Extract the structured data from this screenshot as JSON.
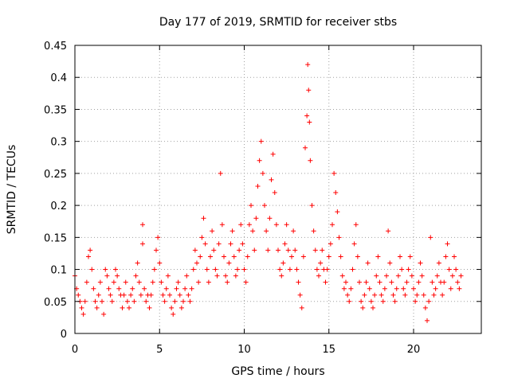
{
  "chart_data": {
    "type": "scatter",
    "title": "Day 177 of 2019, SRMTID for receiver stbs",
    "xlabel": "GPS time / hours",
    "ylabel": "SRMTID / TECUs",
    "xlim": [
      0,
      24
    ],
    "ylim": [
      0,
      0.45
    ],
    "xticks": [
      0,
      5,
      10,
      15,
      20
    ],
    "xtick_labels": [
      "0",
      "5",
      "10",
      "15",
      "20"
    ],
    "yticks": [
      0,
      0.05,
      0.1,
      0.15,
      0.2,
      0.25,
      0.3,
      0.35,
      0.4,
      0.45
    ],
    "ytick_labels": [
      "0",
      "0.05",
      "0.1",
      "0.15",
      "0.2",
      "0.25",
      "0.3",
      "0.35",
      "0.4",
      "0.45"
    ],
    "grid": true,
    "marker": "plus",
    "color": "#ff0000",
    "series": [
      {
        "name": "SRMTID",
        "points": [
          [
            0.0,
            0.09
          ],
          [
            0.1,
            0.07
          ],
          [
            0.2,
            0.06
          ],
          [
            0.3,
            0.05
          ],
          [
            0.4,
            0.04
          ],
          [
            0.5,
            0.03
          ],
          [
            0.6,
            0.05
          ],
          [
            0.7,
            0.08
          ],
          [
            0.8,
            0.12
          ],
          [
            0.9,
            0.13
          ],
          [
            1.0,
            0.1
          ],
          [
            1.1,
            0.07
          ],
          [
            1.2,
            0.05
          ],
          [
            1.3,
            0.04
          ],
          [
            1.4,
            0.06
          ],
          [
            1.5,
            0.08
          ],
          [
            1.6,
            0.05
          ],
          [
            1.7,
            0.03
          ],
          [
            1.8,
            0.1
          ],
          [
            1.9,
            0.09
          ],
          [
            2.0,
            0.07
          ],
          [
            2.1,
            0.06
          ],
          [
            2.2,
            0.05
          ],
          [
            2.3,
            0.08
          ],
          [
            2.4,
            0.1
          ],
          [
            2.5,
            0.09
          ],
          [
            2.6,
            0.07
          ],
          [
            2.7,
            0.06
          ],
          [
            2.8,
            0.04
          ],
          [
            2.9,
            0.06
          ],
          [
            3.0,
            0.08
          ],
          [
            3.1,
            0.05
          ],
          [
            3.2,
            0.04
          ],
          [
            3.3,
            0.06
          ],
          [
            3.4,
            0.07
          ],
          [
            3.5,
            0.05
          ],
          [
            3.6,
            0.09
          ],
          [
            3.7,
            0.11
          ],
          [
            3.8,
            0.08
          ],
          [
            3.9,
            0.06
          ],
          [
            4.0,
            0.17
          ],
          [
            4.0,
            0.14
          ],
          [
            4.1,
            0.07
          ],
          [
            4.2,
            0.05
          ],
          [
            4.3,
            0.06
          ],
          [
            4.4,
            0.04
          ],
          [
            4.5,
            0.06
          ],
          [
            4.6,
            0.08
          ],
          [
            4.7,
            0.1
          ],
          [
            4.8,
            0.13
          ],
          [
            4.9,
            0.15
          ],
          [
            5.0,
            0.11
          ],
          [
            5.1,
            0.08
          ],
          [
            5.2,
            0.06
          ],
          [
            5.3,
            0.05
          ],
          [
            5.4,
            0.07
          ],
          [
            5.5,
            0.09
          ],
          [
            5.6,
            0.06
          ],
          [
            5.7,
            0.04
          ],
          [
            5.8,
            0.03
          ],
          [
            5.9,
            0.05
          ],
          [
            6.0,
            0.07
          ],
          [
            6.1,
            0.08
          ],
          [
            6.2,
            0.06
          ],
          [
            6.3,
            0.04
          ],
          [
            6.4,
            0.05
          ],
          [
            6.5,
            0.07
          ],
          [
            6.6,
            0.09
          ],
          [
            6.7,
            0.06
          ],
          [
            6.8,
            0.05
          ],
          [
            6.9,
            0.07
          ],
          [
            7.0,
            0.1
          ],
          [
            7.1,
            0.13
          ],
          [
            7.2,
            0.11
          ],
          [
            7.3,
            0.08
          ],
          [
            7.4,
            0.12
          ],
          [
            7.5,
            0.15
          ],
          [
            7.6,
            0.18
          ],
          [
            7.7,
            0.14
          ],
          [
            7.8,
            0.1
          ],
          [
            7.9,
            0.08
          ],
          [
            8.0,
            0.12
          ],
          [
            8.1,
            0.16
          ],
          [
            8.2,
            0.13
          ],
          [
            8.3,
            0.1
          ],
          [
            8.4,
            0.09
          ],
          [
            8.5,
            0.14
          ],
          [
            8.6,
            0.25
          ],
          [
            8.7,
            0.17
          ],
          [
            8.8,
            0.12
          ],
          [
            8.9,
            0.09
          ],
          [
            9.0,
            0.08
          ],
          [
            9.1,
            0.11
          ],
          [
            9.2,
            0.14
          ],
          [
            9.3,
            0.16
          ],
          [
            9.4,
            0.12
          ],
          [
            9.5,
            0.09
          ],
          [
            9.6,
            0.1
          ],
          [
            9.7,
            0.13
          ],
          [
            9.8,
            0.17
          ],
          [
            9.9,
            0.14
          ],
          [
            10.0,
            0.1
          ],
          [
            10.1,
            0.08
          ],
          [
            10.2,
            0.12
          ],
          [
            10.3,
            0.17
          ],
          [
            10.4,
            0.2
          ],
          [
            10.5,
            0.16
          ],
          [
            10.6,
            0.13
          ],
          [
            10.7,
            0.18
          ],
          [
            10.8,
            0.23
          ],
          [
            10.9,
            0.27
          ],
          [
            11.0,
            0.3
          ],
          [
            11.1,
            0.25
          ],
          [
            11.2,
            0.2
          ],
          [
            11.3,
            0.16
          ],
          [
            11.4,
            0.13
          ],
          [
            11.5,
            0.18
          ],
          [
            11.6,
            0.24
          ],
          [
            11.7,
            0.28
          ],
          [
            11.8,
            0.22
          ],
          [
            11.9,
            0.17
          ],
          [
            12.0,
            0.13
          ],
          [
            12.1,
            0.1
          ],
          [
            12.2,
            0.09
          ],
          [
            12.3,
            0.11
          ],
          [
            12.4,
            0.14
          ],
          [
            12.5,
            0.17
          ],
          [
            12.6,
            0.13
          ],
          [
            12.7,
            0.1
          ],
          [
            12.8,
            0.12
          ],
          [
            12.9,
            0.16
          ],
          [
            13.0,
            0.13
          ],
          [
            13.1,
            0.1
          ],
          [
            13.2,
            0.08
          ],
          [
            13.3,
            0.06
          ],
          [
            13.4,
            0.04
          ],
          [
            13.5,
            0.12
          ],
          [
            13.6,
            0.29
          ],
          [
            13.7,
            0.34
          ],
          [
            13.75,
            0.42
          ],
          [
            13.8,
            0.38
          ],
          [
            13.85,
            0.33
          ],
          [
            13.9,
            0.27
          ],
          [
            14.0,
            0.2
          ],
          [
            14.1,
            0.16
          ],
          [
            14.2,
            0.13
          ],
          [
            14.3,
            0.1
          ],
          [
            14.4,
            0.09
          ],
          [
            14.5,
            0.11
          ],
          [
            14.6,
            0.13
          ],
          [
            14.7,
            0.1
          ],
          [
            14.8,
            0.08
          ],
          [
            14.9,
            0.1
          ],
          [
            15.0,
            0.12
          ],
          [
            15.1,
            0.14
          ],
          [
            15.2,
            0.17
          ],
          [
            15.3,
            0.25
          ],
          [
            15.4,
            0.22
          ],
          [
            15.5,
            0.19
          ],
          [
            15.6,
            0.15
          ],
          [
            15.7,
            0.12
          ],
          [
            15.8,
            0.09
          ],
          [
            15.9,
            0.07
          ],
          [
            16.0,
            0.08
          ],
          [
            16.1,
            0.06
          ],
          [
            16.2,
            0.05
          ],
          [
            16.3,
            0.07
          ],
          [
            16.4,
            0.1
          ],
          [
            16.5,
            0.14
          ],
          [
            16.6,
            0.17
          ],
          [
            16.7,
            0.12
          ],
          [
            16.8,
            0.08
          ],
          [
            16.9,
            0.05
          ],
          [
            17.0,
            0.04
          ],
          [
            17.1,
            0.06
          ],
          [
            17.2,
            0.08
          ],
          [
            17.3,
            0.11
          ],
          [
            17.4,
            0.07
          ],
          [
            17.5,
            0.05
          ],
          [
            17.6,
            0.04
          ],
          [
            17.7,
            0.06
          ],
          [
            17.8,
            0.09
          ],
          [
            17.9,
            0.12
          ],
          [
            18.0,
            0.08
          ],
          [
            18.1,
            0.06
          ],
          [
            18.2,
            0.05
          ],
          [
            18.3,
            0.07
          ],
          [
            18.4,
            0.09
          ],
          [
            18.5,
            0.16
          ],
          [
            18.6,
            0.11
          ],
          [
            18.7,
            0.08
          ],
          [
            18.8,
            0.06
          ],
          [
            18.9,
            0.05
          ],
          [
            19.0,
            0.07
          ],
          [
            19.1,
            0.09
          ],
          [
            19.2,
            0.12
          ],
          [
            19.3,
            0.1
          ],
          [
            19.4,
            0.07
          ],
          [
            19.5,
            0.06
          ],
          [
            19.6,
            0.08
          ],
          [
            19.7,
            0.1
          ],
          [
            19.8,
            0.12
          ],
          [
            19.9,
            0.09
          ],
          [
            20.0,
            0.07
          ],
          [
            20.1,
            0.05
          ],
          [
            20.2,
            0.06
          ],
          [
            20.3,
            0.08
          ],
          [
            20.4,
            0.11
          ],
          [
            20.5,
            0.09
          ],
          [
            20.6,
            0.06
          ],
          [
            20.7,
            0.04
          ],
          [
            20.8,
            0.02
          ],
          [
            20.9,
            0.05
          ],
          [
            21.0,
            0.15
          ],
          [
            21.1,
            0.08
          ],
          [
            21.2,
            0.06
          ],
          [
            21.3,
            0.07
          ],
          [
            21.4,
            0.09
          ],
          [
            21.5,
            0.11
          ],
          [
            21.6,
            0.08
          ],
          [
            21.7,
            0.06
          ],
          [
            21.8,
            0.08
          ],
          [
            21.9,
            0.12
          ],
          [
            22.0,
            0.14
          ],
          [
            22.1,
            0.1
          ],
          [
            22.2,
            0.07
          ],
          [
            22.3,
            0.09
          ],
          [
            22.4,
            0.12
          ],
          [
            22.5,
            0.1
          ],
          [
            22.6,
            0.08
          ],
          [
            22.7,
            0.07
          ],
          [
            22.8,
            0.09
          ]
        ]
      }
    ]
  }
}
